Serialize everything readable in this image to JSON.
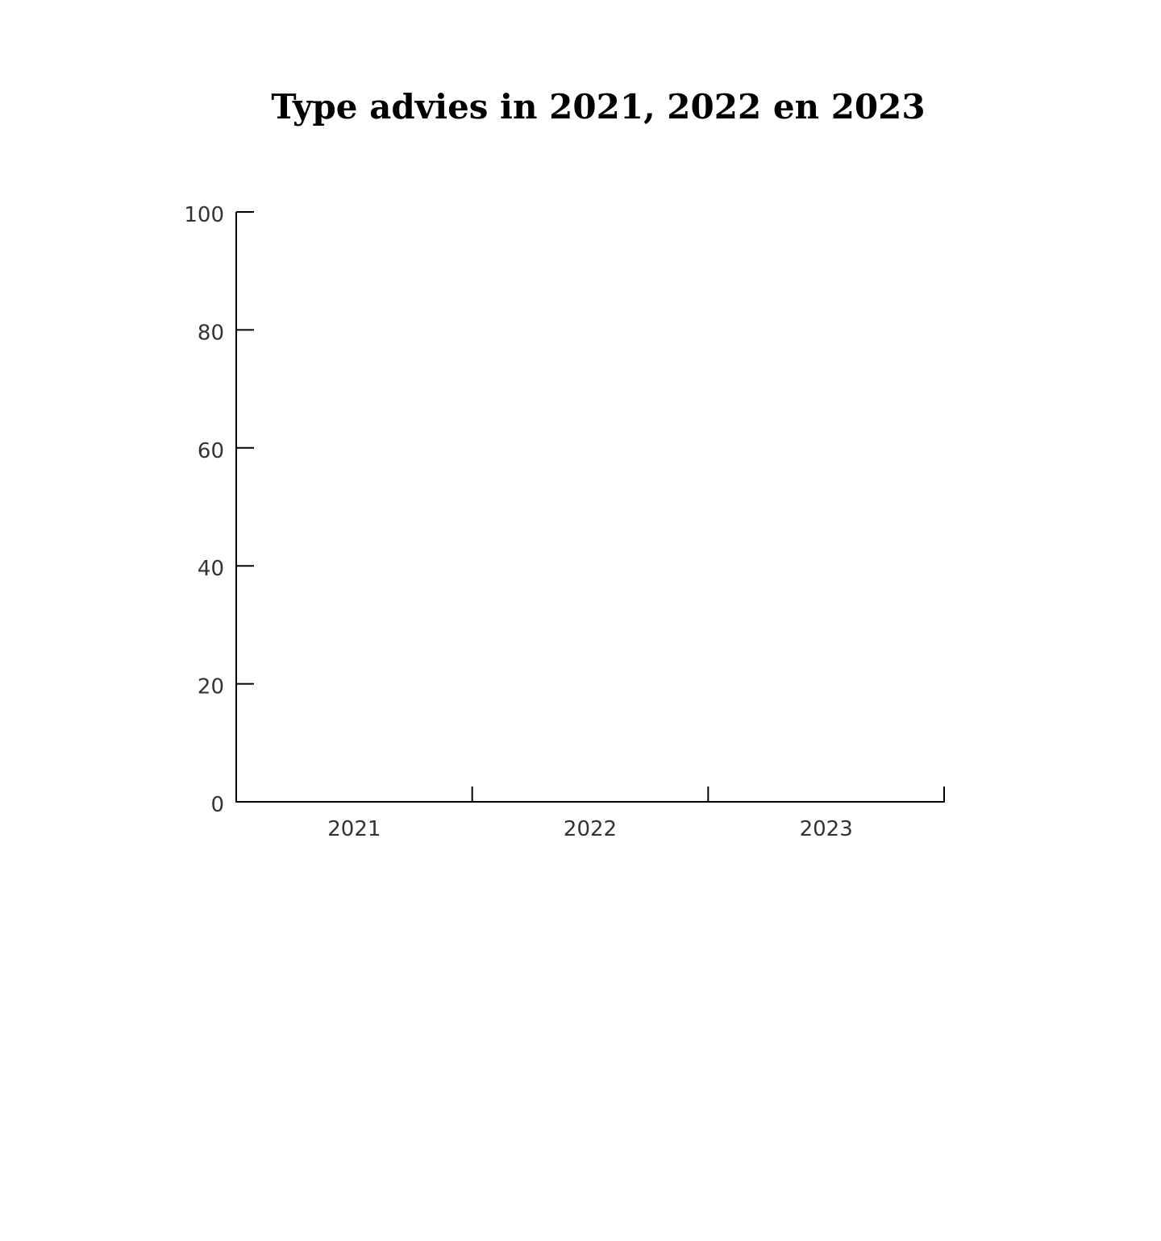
{
  "chart_data": {
    "type": "bar",
    "title": "Type advies in 2021, 2022 en 2023",
    "categories": [
      "2021",
      "2022",
      "2023"
    ],
    "series": [],
    "ylim": [
      0,
      100
    ],
    "yticks": [
      "0",
      "20",
      "40",
      "60",
      "80",
      "100"
    ],
    "xlabel": "",
    "ylabel": "",
    "grid": false,
    "axis_color": "#000000",
    "tick_label_color": "#333333"
  }
}
